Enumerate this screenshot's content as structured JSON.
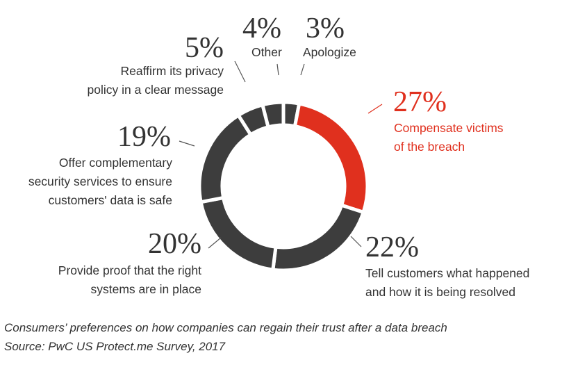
{
  "chart_data": {
    "type": "donut",
    "categories": [
      "Apologize",
      "Compensate victims\nof the breach",
      "Tell customers what happened\nand how it is being resolved",
      "Provide proof that the right\nsystems are in place",
      "Offer complementary\nsecurity services to ensure\ncustomers' data is safe",
      "Reaffirm its privacy\npolicy in a clear message",
      "Other"
    ],
    "values": [
      3,
      27,
      22,
      20,
      19,
      5,
      4
    ],
    "value_labels": [
      "3%",
      "27%",
      "22%",
      "20%",
      "19%",
      "5%",
      "4%"
    ],
    "colors": [
      "#3d3d3d",
      "#e0301e",
      "#3d3d3d",
      "#3d3d3d",
      "#3d3d3d",
      "#3d3d3d",
      "#3d3d3d"
    ],
    "label_colors": [
      "#333333",
      "#e0301e",
      "#333333",
      "#333333",
      "#333333",
      "#333333",
      "#333333"
    ],
    "caption": "Consumers’ preferences on how companies can regain their trust after a data breach",
    "source": "Source: PwC US Protect.me Survey, 2017"
  }
}
